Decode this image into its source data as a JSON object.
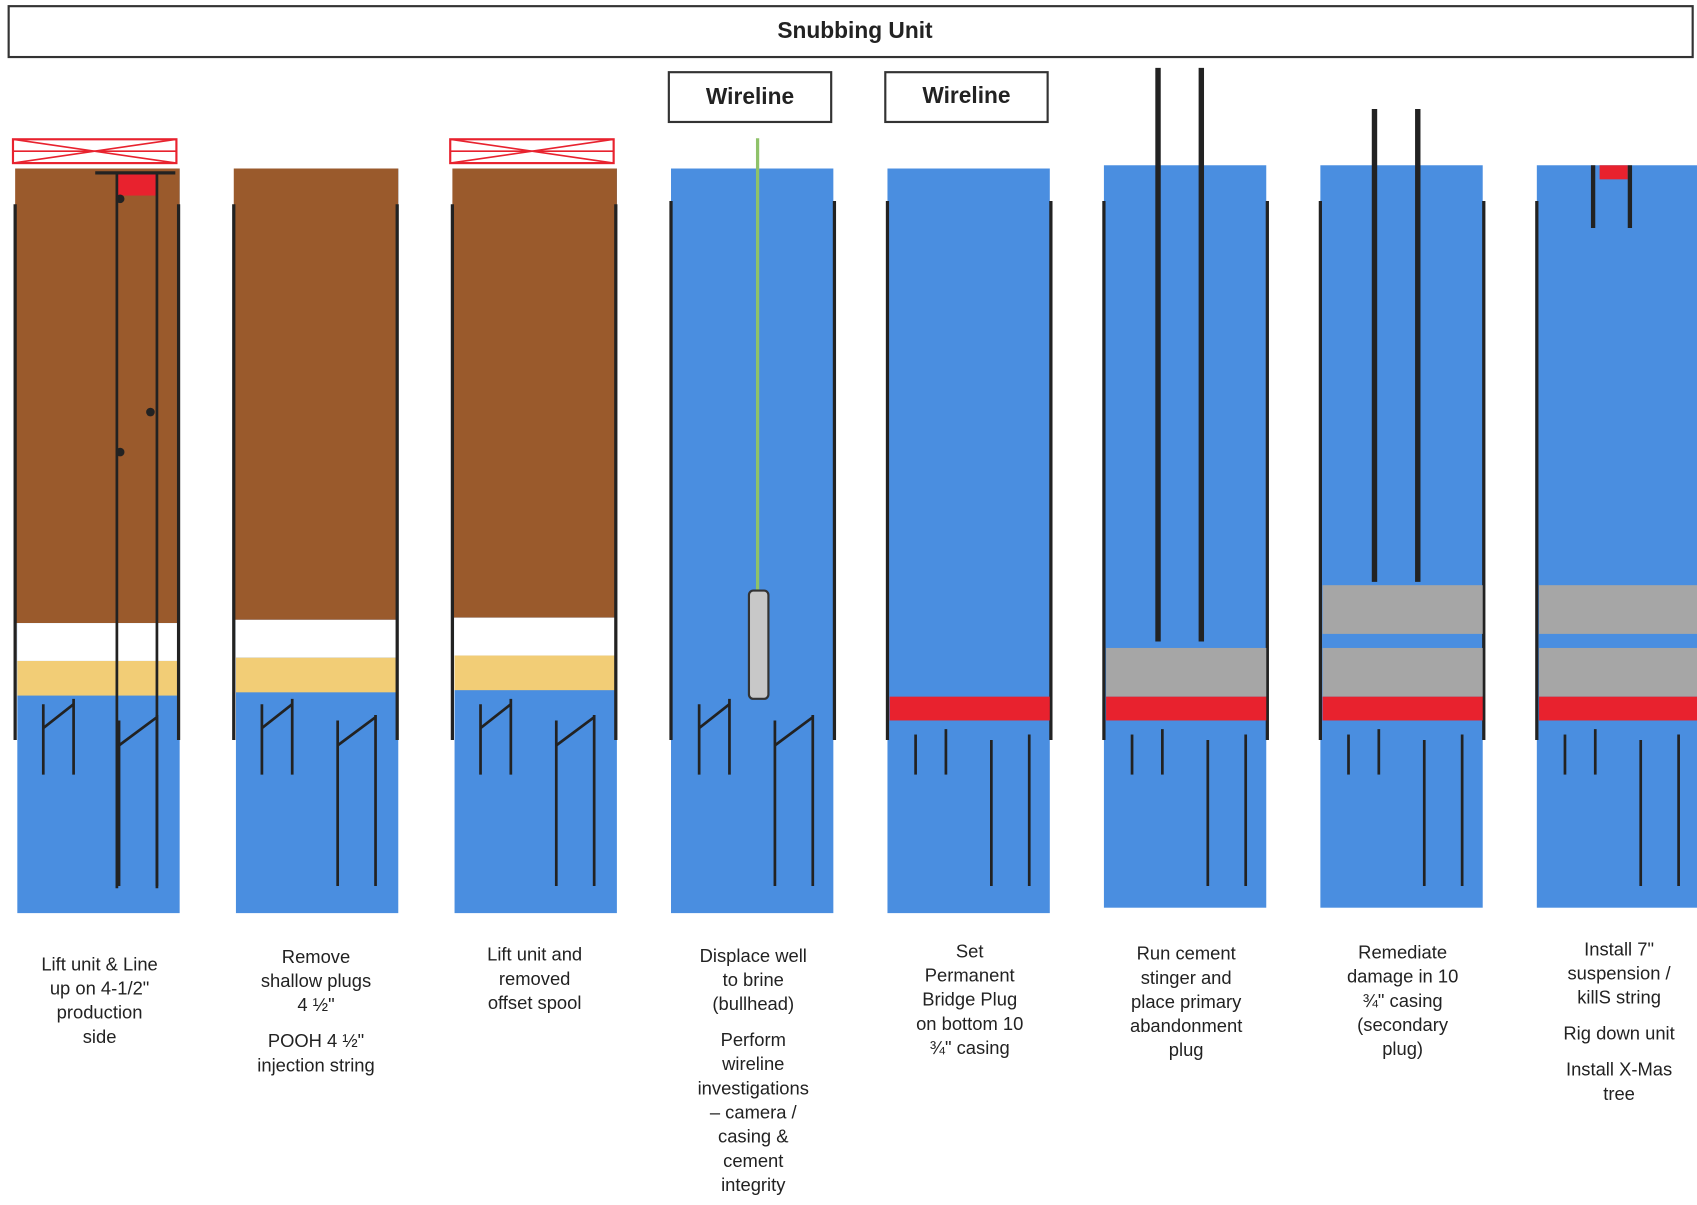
{
  "header": {
    "title": "Snubbing Unit"
  },
  "wireline_labels": [
    "Wireline",
    "Wireline"
  ],
  "steps": [
    {
      "caption": [
        [
          "Lift unit & Line",
          "up on 4-1/2\"",
          "production",
          "side"
        ]
      ]
    },
    {
      "caption": [
        [
          "Remove",
          "shallow plugs",
          "4 ½\""
        ],
        [
          "POOH 4 ½\"",
          "injection string"
        ]
      ]
    },
    {
      "caption": [
        [
          "Lift unit and",
          "removed",
          "offset spool"
        ]
      ]
    },
    {
      "caption": [
        [
          "Displace well",
          "to brine",
          "(bullhead)"
        ],
        [
          "Perform",
          "wireline",
          "investigations",
          "– camera /",
          "casing &",
          "cement",
          "integrity"
        ]
      ]
    },
    {
      "caption": [
        [
          "Set",
          "Permanent",
          "Bridge Plug",
          "on bottom 10",
          "¾\" casing"
        ]
      ]
    },
    {
      "caption": [
        [
          "Run cement",
          "stinger and",
          "place primary",
          "abandonment",
          "plug"
        ]
      ]
    },
    {
      "caption": [
        [
          "Remediate",
          "damage in 10",
          "¾\" casing",
          "(secondary",
          "plug)"
        ]
      ]
    },
    {
      "caption": [
        [
          "Install 7\"",
          "suspension /",
          "killS string"
        ],
        [
          "Rig down unit"
        ],
        [
          "Install X-Mas",
          "tree"
        ]
      ]
    }
  ]
}
